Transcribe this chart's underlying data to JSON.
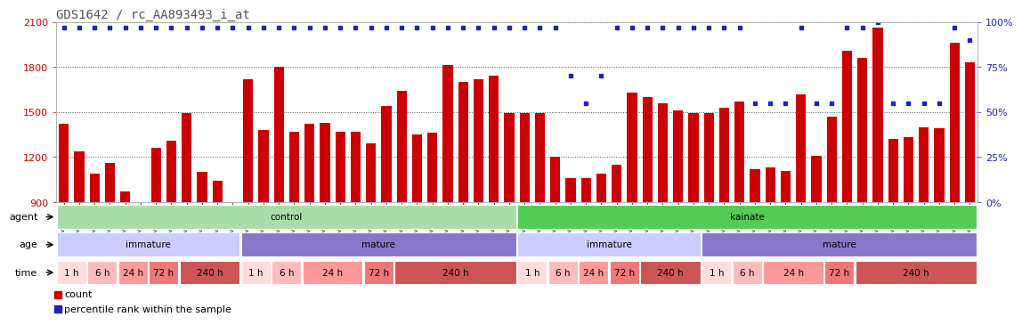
{
  "title": "GDS1642 / rc_AA893493_i_at",
  "samples": [
    "GSM32070",
    "GSM32071",
    "GSM32072",
    "GSM32076",
    "GSM32077",
    "GSM32078",
    "GSM32082",
    "GSM32083",
    "GSM32084",
    "GSM32088",
    "GSM32089",
    "GSM32090",
    "GSM32091",
    "GSM32092",
    "GSM32093",
    "GSM32123",
    "GSM32124",
    "GSM32125",
    "GSM32129",
    "GSM32130",
    "GSM32131",
    "GSM32135",
    "GSM32136",
    "GSM32137",
    "GSM32141",
    "GSM32142",
    "GSM32143",
    "GSM32147",
    "GSM32148",
    "GSM32149",
    "GSM32067",
    "GSM32068",
    "GSM32069",
    "GSM32073",
    "GSM32074",
    "GSM32075",
    "GSM32079",
    "GSM32080",
    "GSM32081",
    "GSM32085",
    "GSM32086",
    "GSM32087",
    "GSM32094",
    "GSM32095",
    "GSM32096",
    "GSM32126",
    "GSM32127",
    "GSM32128",
    "GSM32132",
    "GSM32133",
    "GSM32134",
    "GSM32138",
    "GSM32139",
    "GSM32140",
    "GSM32144",
    "GSM32145",
    "GSM32146",
    "GSM32150",
    "GSM32151",
    "GSM32152"
  ],
  "counts": [
    1420,
    1240,
    1090,
    1160,
    970,
    870,
    1260,
    1310,
    1490,
    1100,
    1040,
    870,
    1720,
    1380,
    1800,
    1370,
    1420,
    1430,
    1370,
    1370,
    1290,
    1540,
    1640,
    1350,
    1360,
    1810,
    1700,
    1720,
    1740,
    1490,
    1490,
    1490,
    1200,
    1060,
    1060,
    1090,
    1150,
    1630,
    1600,
    1560,
    1510,
    1490,
    1490,
    1530,
    1570,
    1120,
    1130,
    1110,
    1620,
    1210,
    1470,
    1910,
    1860,
    2060,
    1320,
    1330,
    1400,
    1390,
    1960,
    1830
  ],
  "percentiles": [
    97,
    97,
    97,
    97,
    97,
    97,
    97,
    97,
    97,
    97,
    97,
    97,
    97,
    97,
    97,
    97,
    97,
    97,
    97,
    97,
    97,
    97,
    97,
    97,
    97,
    97,
    97,
    97,
    97,
    97,
    97,
    97,
    97,
    70,
    55,
    70,
    97,
    97,
    97,
    97,
    97,
    97,
    97,
    97,
    97,
    55,
    55,
    55,
    97,
    55,
    55,
    97,
    97,
    100,
    55,
    55,
    55,
    55,
    97,
    90
  ],
  "ylim_left": [
    900,
    2100
  ],
  "ylim_right": [
    0,
    100
  ],
  "yticks_left": [
    900,
    1200,
    1500,
    1800,
    2100
  ],
  "yticks_right": [
    0,
    25,
    50,
    75,
    100
  ],
  "bar_color": "#cc0000",
  "dot_color": "#2222bb",
  "agent_groups": [
    {
      "label": "control",
      "start": 0,
      "end": 29,
      "color": "#aaddaa"
    },
    {
      "label": "kainate",
      "start": 30,
      "end": 59,
      "color": "#55cc55"
    }
  ],
  "age_groups": [
    {
      "label": "immature",
      "start": 0,
      "end": 11,
      "color": "#ccccff"
    },
    {
      "label": "mature",
      "start": 12,
      "end": 29,
      "color": "#8877cc"
    },
    {
      "label": "immature",
      "start": 30,
      "end": 41,
      "color": "#ccccff"
    },
    {
      "label": "mature",
      "start": 42,
      "end": 59,
      "color": "#8877cc"
    }
  ],
  "time_groups": [
    {
      "label": "1 h",
      "start": 0,
      "end": 1,
      "color": "#ffdddd"
    },
    {
      "label": "6 h",
      "start": 2,
      "end": 3,
      "color": "#ffbbbb"
    },
    {
      "label": "24 h",
      "start": 4,
      "end": 5,
      "color": "#ff9999"
    },
    {
      "label": "72 h",
      "start": 6,
      "end": 7,
      "color": "#ee7777"
    },
    {
      "label": "240 h",
      "start": 8,
      "end": 11,
      "color": "#cc5555"
    },
    {
      "label": "1 h",
      "start": 12,
      "end": 13,
      "color": "#ffdddd"
    },
    {
      "label": "6 h",
      "start": 14,
      "end": 15,
      "color": "#ffbbbb"
    },
    {
      "label": "24 h",
      "start": 16,
      "end": 19,
      "color": "#ff9999"
    },
    {
      "label": "72 h",
      "start": 20,
      "end": 21,
      "color": "#ee7777"
    },
    {
      "label": "240 h",
      "start": 22,
      "end": 29,
      "color": "#cc5555"
    },
    {
      "label": "1 h",
      "start": 30,
      "end": 31,
      "color": "#ffdddd"
    },
    {
      "label": "6 h",
      "start": 32,
      "end": 33,
      "color": "#ffbbbb"
    },
    {
      "label": "24 h",
      "start": 34,
      "end": 35,
      "color": "#ff9999"
    },
    {
      "label": "72 h",
      "start": 36,
      "end": 37,
      "color": "#ee7777"
    },
    {
      "label": "240 h",
      "start": 38,
      "end": 41,
      "color": "#cc5555"
    },
    {
      "label": "1 h",
      "start": 42,
      "end": 43,
      "color": "#ffdddd"
    },
    {
      "label": "6 h",
      "start": 44,
      "end": 45,
      "color": "#ffbbbb"
    },
    {
      "label": "24 h",
      "start": 46,
      "end": 49,
      "color": "#ff9999"
    },
    {
      "label": "72 h",
      "start": 50,
      "end": 51,
      "color": "#ee7777"
    },
    {
      "label": "240 h",
      "start": 52,
      "end": 59,
      "color": "#cc5555"
    }
  ],
  "legend_count_color": "#cc0000",
  "legend_dot_color": "#2222bb",
  "background_color": "#ffffff",
  "grid_color": "#555555",
  "title_color": "#555555"
}
